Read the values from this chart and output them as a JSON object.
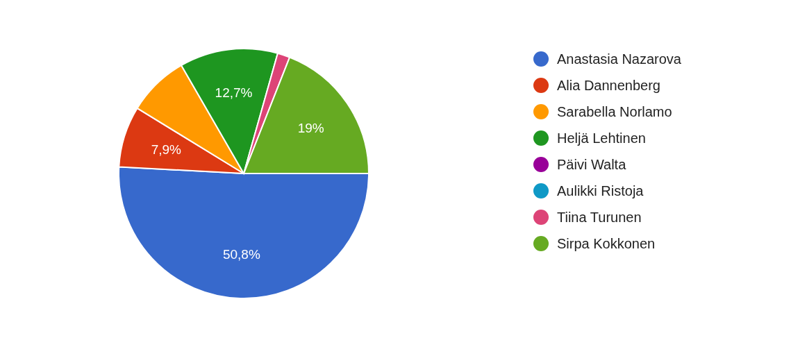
{
  "chart_data": {
    "type": "pie",
    "categories": [
      "Anastasia Nazarova",
      "Alia Dannenberg",
      "Sarabella Norlamo",
      "Heljä Lehtinen",
      "Päivi Walta",
      "Aulikki Ristoja",
      "Tiina Turunen",
      "Sirpa Kokkonen"
    ],
    "values": [
      50.8,
      7.9,
      7.9,
      12.7,
      0,
      0,
      1.6,
      19
    ],
    "colors": [
      "#3769cc",
      "#dc3912",
      "#ff9900",
      "#1e9620",
      "#990099",
      "#0f99c6",
      "#dd4477",
      "#66aa22"
    ],
    "value_labels": [
      "50,8%",
      "7,9%",
      null,
      "12,7%",
      null,
      null,
      null,
      "19%"
    ],
    "legend": "right"
  }
}
